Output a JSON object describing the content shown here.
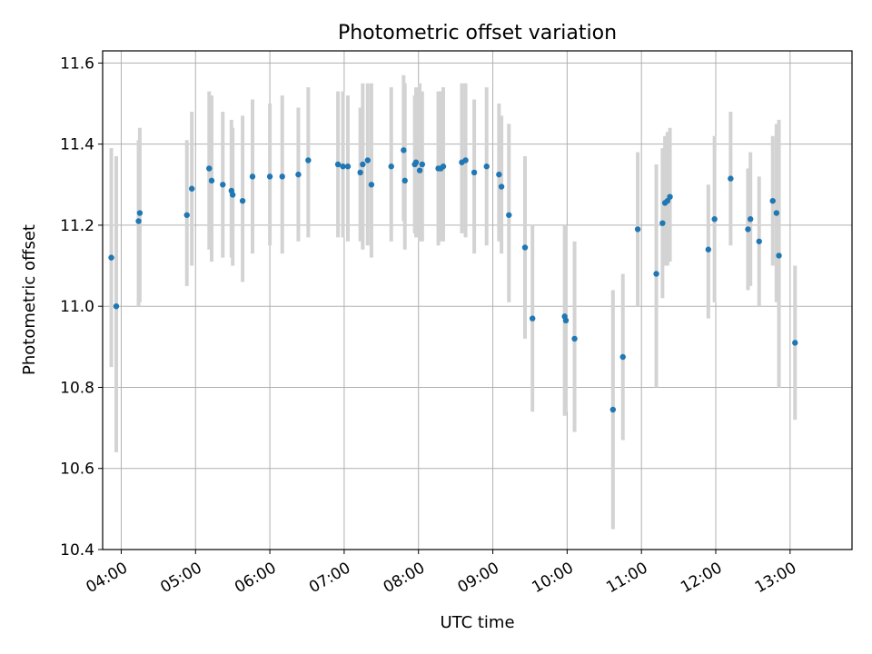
{
  "chart_data": {
    "type": "scatter",
    "title": "Photometric offset variation",
    "xlabel": "UTC time",
    "ylabel": "Photometric offset",
    "x_ticks": [
      "04:00",
      "05:00",
      "06:00",
      "07:00",
      "08:00",
      "09:00",
      "10:00",
      "11:00",
      "12:00",
      "13:00"
    ],
    "y_ticks": [
      "10.4",
      "10.6",
      "10.8",
      "11.0",
      "11.2",
      "11.4",
      "11.6"
    ],
    "xlim": [
      "03:45",
      "13:50"
    ],
    "ylim": [
      10.4,
      11.63
    ],
    "grid": true,
    "colors": {
      "points": "#1f77b4",
      "errorbars": "#d3d3d3",
      "grid": "#b0b0b0"
    },
    "series": [
      {
        "x": [
          "03:52",
          "03:56",
          "04:14",
          "04:15",
          "04:53",
          "04:57",
          "05:11",
          "05:13",
          "05:22",
          "05:29",
          "05:30",
          "05:38",
          "05:46",
          "06:00",
          "06:10",
          "06:23",
          "06:31",
          "06:55",
          "06:59",
          "07:03",
          "07:13",
          "07:15",
          "07:19",
          "07:22",
          "08:18",
          "07:38",
          "07:48",
          "07:49",
          "07:57",
          "07:58",
          "08:01",
          "08:03",
          "08:16",
          "08:20",
          "08:35",
          "08:38",
          "08:45",
          "08:55",
          "09:05",
          "09:07",
          "09:13",
          "09:26",
          "09:32",
          "09:58",
          "09:59",
          "10:06",
          "10:37",
          "10:45",
          "10:57",
          "11:12",
          "11:17",
          "11:19",
          "11:21",
          "11:23",
          "11:54",
          "11:59",
          "12:12",
          "12:26",
          "12:28",
          "12:35",
          "12:46",
          "12:49",
          "12:51",
          "13:04"
        ],
        "y": [
          11.12,
          11.0,
          11.21,
          11.23,
          11.225,
          11.29,
          11.34,
          11.31,
          11.3,
          11.285,
          11.275,
          11.26,
          11.32,
          11.32,
          11.32,
          11.325,
          11.36,
          11.35,
          11.345,
          11.345,
          11.33,
          11.35,
          11.36,
          11.3,
          11.34,
          11.345,
          11.385,
          11.31,
          11.35,
          11.355,
          11.335,
          11.35,
          11.34,
          11.345,
          11.355,
          11.36,
          11.33,
          11.345,
          11.325,
          11.295,
          11.225,
          11.145,
          10.97,
          10.975,
          10.965,
          10.92,
          10.745,
          10.875,
          11.19,
          11.08,
          11.205,
          11.255,
          11.26,
          11.27,
          11.14,
          11.215,
          11.315,
          11.19,
          11.215,
          11.16,
          11.26,
          11.23,
          11.125,
          10.91
        ],
        "y_lo": [
          10.85,
          10.64,
          11.0,
          11.01,
          11.05,
          11.1,
          11.14,
          11.11,
          11.12,
          11.12,
          11.1,
          11.06,
          11.13,
          11.15,
          11.13,
          11.16,
          11.17,
          11.17,
          11.17,
          11.16,
          11.16,
          11.14,
          11.15,
          11.12,
          11.16,
          11.16,
          11.21,
          11.14,
          11.18,
          11.17,
          11.16,
          11.16,
          11.15,
          11.16,
          11.18,
          11.17,
          11.13,
          11.15,
          11.16,
          11.13,
          11.01,
          10.92,
          10.74,
          10.73,
          10.74,
          10.69,
          10.45,
          10.67,
          11.0,
          10.8,
          11.02,
          11.1,
          11.1,
          11.11,
          10.97,
          11.01,
          11.15,
          11.04,
          11.05,
          11.0,
          11.1,
          11.01,
          10.8,
          10.72
        ],
        "y_hi": [
          11.39,
          11.37,
          11.41,
          11.44,
          11.41,
          11.48,
          11.53,
          11.52,
          11.48,
          11.46,
          11.44,
          11.47,
          11.51,
          11.5,
          11.52,
          11.49,
          11.54,
          11.53,
          11.53,
          11.52,
          11.49,
          11.55,
          11.55,
          11.55,
          11.53,
          11.54,
          11.57,
          11.55,
          11.52,
          11.54,
          11.55,
          11.53,
          11.53,
          11.54,
          11.55,
          11.55,
          11.51,
          11.54,
          11.5,
          11.47,
          11.45,
          11.37,
          11.2,
          11.2,
          11.2,
          11.16,
          11.04,
          11.08,
          11.38,
          11.35,
          11.39,
          11.42,
          11.43,
          11.44,
          11.3,
          11.42,
          11.48,
          11.34,
          11.38,
          11.32,
          11.42,
          11.45,
          11.46,
          11.1
        ]
      }
    ]
  }
}
